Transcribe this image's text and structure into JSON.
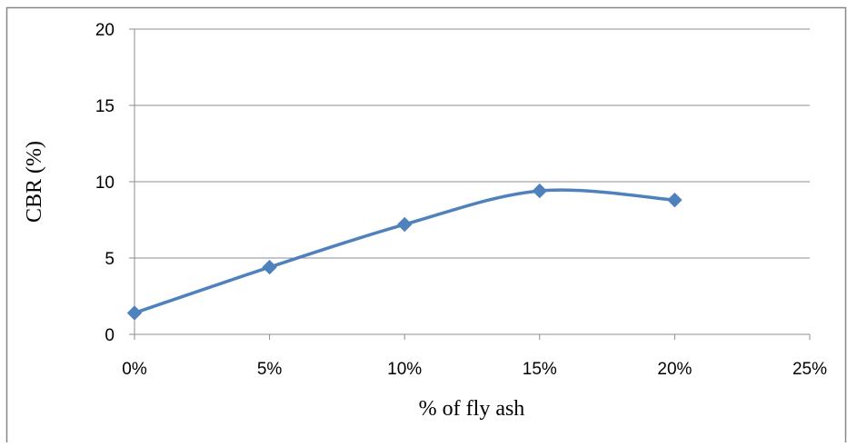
{
  "chart_data": {
    "type": "line",
    "title": "",
    "xlabel": "% of fly ash",
    "ylabel": "CBR (%)",
    "x": [
      0,
      5,
      10,
      15,
      20
    ],
    "series": [
      {
        "values": [
          1.4,
          4.4,
          7.2,
          9.4,
          8.8
        ]
      }
    ],
    "xlim": [
      0,
      25
    ],
    "ylim": [
      0,
      20
    ],
    "x_ticks": [
      0,
      5,
      10,
      15,
      20,
      25
    ],
    "x_tick_labels": [
      "0%",
      "5%",
      "10%",
      "15%",
      "20%",
      "25%"
    ],
    "y_ticks": [
      0,
      5,
      10,
      15,
      20
    ],
    "y_tick_labels": [
      "0",
      "5",
      "10",
      "15",
      "20"
    ],
    "grid": true,
    "legend": "none",
    "line_color": "#4F81BD",
    "marker": "diamond",
    "smooth": true
  }
}
